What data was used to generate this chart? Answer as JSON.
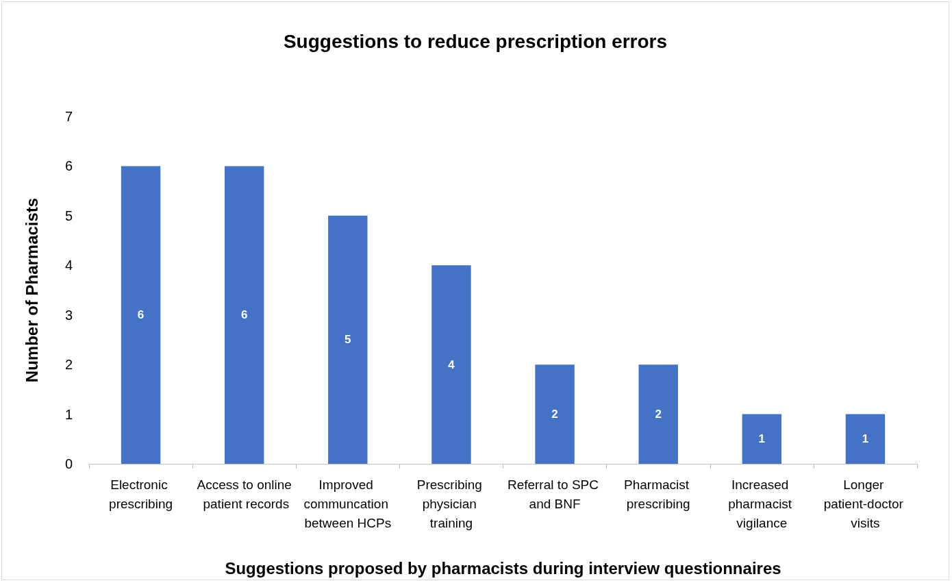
{
  "chart_data": {
    "type": "bar",
    "title": "Suggestions to reduce prescription errors",
    "xlabel": "Suggestions proposed by pharmacists during interview questionnaires",
    "ylabel": "Number of Pharmacists",
    "categories": [
      "Electronic prescribing",
      "Access to online patient records",
      "Improved communcation between HCPs",
      "Prescribing physician training",
      "Referral to SPC and BNF",
      "Pharmacist prescribing",
      "Increased pharmacist vigilance",
      "Longer patient-doctor visits"
    ],
    "values": [
      6,
      6,
      5,
      4,
      2,
      2,
      1,
      1
    ],
    "color": "#4472c4",
    "ylim": [
      0,
      7
    ],
    "yticks": [
      0,
      1,
      2,
      3,
      4,
      5,
      6,
      7
    ],
    "grid": false,
    "data_labels": true
  }
}
